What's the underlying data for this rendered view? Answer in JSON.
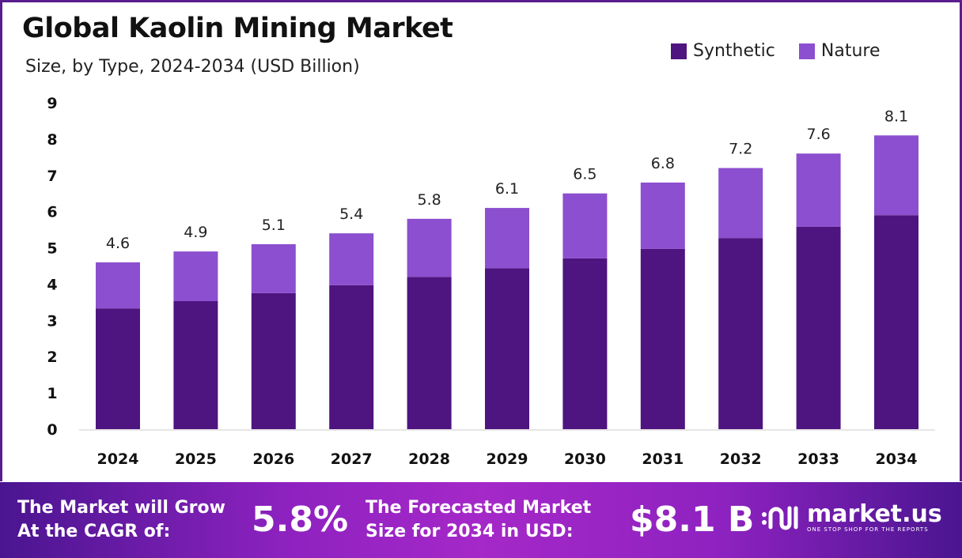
{
  "chart_data": {
    "type": "bar",
    "stacked": true,
    "title": "Global Kaolin Mining Market",
    "subtitle": "Size, by Type, 2024-2034 (USD Billion)",
    "categories": [
      "2024",
      "2025",
      "2026",
      "2027",
      "2028",
      "2029",
      "2030",
      "2031",
      "2032",
      "2033",
      "2034"
    ],
    "series": [
      {
        "name": "Synthetic",
        "color": "#4e1480",
        "values": [
          3.33,
          3.53,
          3.75,
          3.97,
          4.2,
          4.44,
          4.71,
          4.97,
          5.27,
          5.58,
          5.9
        ]
      },
      {
        "name": "Nature",
        "color": "#8c4fcf",
        "values": [
          1.27,
          1.37,
          1.35,
          1.43,
          1.6,
          1.66,
          1.79,
          1.83,
          1.93,
          2.02,
          2.2
        ]
      }
    ],
    "totals": [
      "4.6",
      "4.9",
      "5.1",
      "5.4",
      "5.8",
      "6.1",
      "6.5",
      "6.8",
      "7.2",
      "7.6",
      "8.1"
    ],
    "ylim": [
      0,
      9
    ],
    "yticks": [
      "0",
      "1",
      "2",
      "3",
      "4",
      "5",
      "6",
      "7",
      "8",
      "9"
    ],
    "grid": false,
    "legend": "top-right"
  },
  "footer": {
    "cagr_line1": "The Market will Grow",
    "cagr_line2": "At the CAGR of:",
    "cagr_value": "5.8%",
    "forecast_line1": "The Forecasted Market",
    "forecast_line2": "Size for 2034 in USD:",
    "forecast_value": "$8.1 B",
    "logo_name": "market.us",
    "logo_tagline": "ONE STOP SHOP FOR THE REPORTS"
  }
}
